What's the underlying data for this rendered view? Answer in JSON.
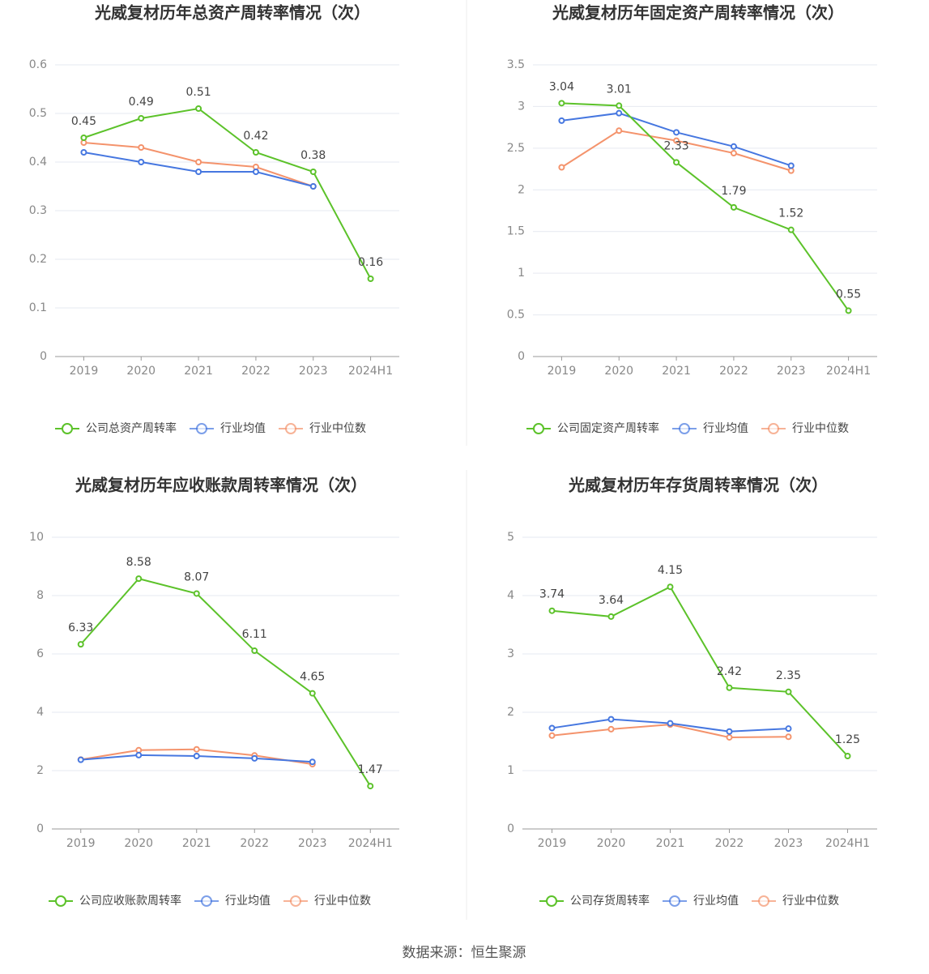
{
  "chart_data": [
    {
      "type": "line",
      "title": "光威复材历年总资产周转率情况（次）",
      "categories": [
        "2019",
        "2020",
        "2021",
        "2022",
        "2023",
        "2024H1"
      ],
      "series": [
        {
          "name": "公司总资产周转率",
          "color": "#5cc22a",
          "values": [
            0.45,
            0.49,
            0.51,
            0.42,
            0.38,
            0.16
          ]
        },
        {
          "name": "行业均值",
          "color": "#4677e0",
          "values": [
            0.42,
            0.4,
            0.38,
            0.38,
            0.35,
            null
          ]
        },
        {
          "name": "行业中位数",
          "color": "#f4936c",
          "values": [
            0.44,
            0.43,
            0.4,
            0.39,
            0.35,
            null
          ]
        }
      ],
      "ylim": [
        0,
        0.6
      ],
      "yticks": [
        0,
        0.1,
        0.2,
        0.3,
        0.4,
        0.5,
        0.6
      ],
      "grid": true
    },
    {
      "type": "line",
      "title": "光威复材历年固定资产周转率情况（次）",
      "categories": [
        "2019",
        "2020",
        "2021",
        "2022",
        "2023",
        "2024H1"
      ],
      "series": [
        {
          "name": "公司固定资产周转率",
          "color": "#5cc22a",
          "values": [
            3.04,
            3.01,
            2.33,
            1.79,
            1.52,
            0.55
          ]
        },
        {
          "name": "行业均值",
          "color": "#4677e0",
          "values": [
            2.83,
            2.92,
            2.69,
            2.52,
            2.29,
            null
          ]
        },
        {
          "name": "行业中位数",
          "color": "#f4936c",
          "values": [
            2.27,
            2.71,
            2.59,
            2.44,
            2.23,
            null
          ]
        }
      ],
      "ylim": [
        0,
        3.5
      ],
      "yticks": [
        0,
        0.5,
        1,
        1.5,
        2,
        2.5,
        3,
        3.5
      ],
      "grid": true
    },
    {
      "type": "line",
      "title": "光威复材历年应收账款周转率情况（次）",
      "categories": [
        "2019",
        "2020",
        "2021",
        "2022",
        "2023",
        "2024H1"
      ],
      "series": [
        {
          "name": "公司应收账款周转率",
          "color": "#5cc22a",
          "values": [
            6.33,
            8.58,
            8.07,
            6.11,
            4.65,
            1.47
          ]
        },
        {
          "name": "行业均值",
          "color": "#4677e0",
          "values": [
            2.37,
            2.53,
            2.5,
            2.42,
            2.3,
            null
          ]
        },
        {
          "name": "行业中位数",
          "color": "#f4936c",
          "values": [
            2.38,
            2.7,
            2.73,
            2.52,
            2.22,
            null
          ]
        }
      ],
      "ylim": [
        0,
        10
      ],
      "yticks": [
        0,
        2,
        4,
        6,
        8,
        10
      ],
      "grid": true
    },
    {
      "type": "line",
      "title": "光威复材历年存货周转率情况（次）",
      "categories": [
        "2019",
        "2020",
        "2021",
        "2022",
        "2023",
        "2024H1"
      ],
      "series": [
        {
          "name": "公司存货周转率",
          "color": "#5cc22a",
          "values": [
            3.74,
            3.64,
            4.15,
            2.42,
            2.35,
            1.25
          ]
        },
        {
          "name": "行业均值",
          "color": "#4677e0",
          "values": [
            1.73,
            1.88,
            1.81,
            1.67,
            1.72,
            null
          ]
        },
        {
          "name": "行业中位数",
          "color": "#f4936c",
          "values": [
            1.6,
            1.71,
            1.79,
            1.57,
            1.58,
            null
          ]
        }
      ],
      "ylim": [
        0,
        5
      ],
      "yticks": [
        0,
        1,
        2,
        3,
        4,
        5
      ],
      "grid": true
    }
  ],
  "source": "数据来源：恒生聚源"
}
